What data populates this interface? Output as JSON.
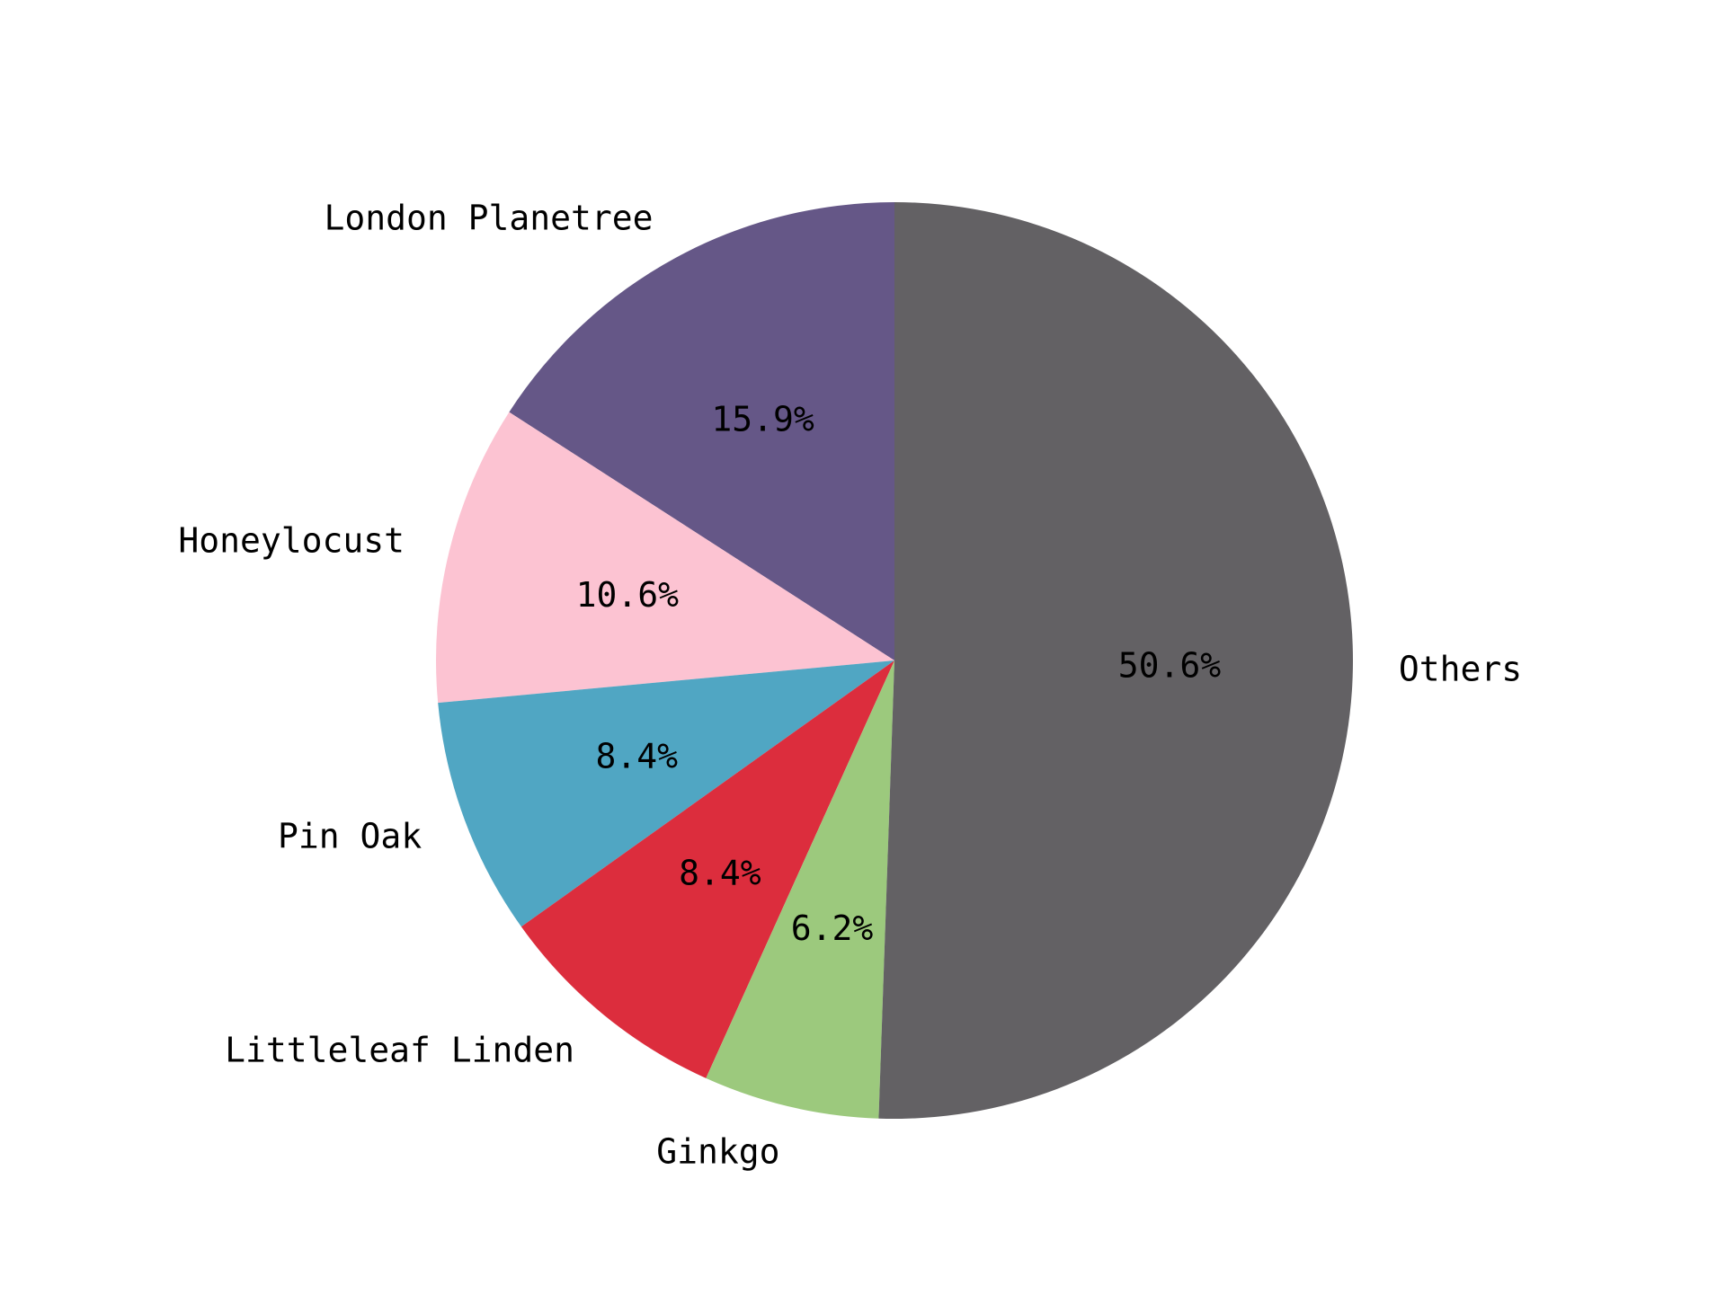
{
  "chart_data": {
    "type": "pie",
    "start_angle_deg": 90,
    "direction": "counterclockwise",
    "slices": [
      {
        "label": "London Planetree",
        "value": 15.9,
        "pct_text": "15.9%",
        "color": "#655787"
      },
      {
        "label": "Honeylocust",
        "value": 10.6,
        "pct_text": "10.6%",
        "color": "#fcc3d2"
      },
      {
        "label": "Pin Oak",
        "value": 8.4,
        "pct_text": "8.4%",
        "color": "#50a6c3"
      },
      {
        "label": "Littleleaf Linden",
        "value": 8.4,
        "pct_text": "8.4%",
        "color": "#dc2d3d"
      },
      {
        "label": "Ginkgo",
        "value": 6.2,
        "pct_text": "6.2%",
        "color": "#9cc97d"
      },
      {
        "label": "Others",
        "value": 50.6,
        "pct_text": "50.6%",
        "color": "#636164"
      }
    ]
  }
}
